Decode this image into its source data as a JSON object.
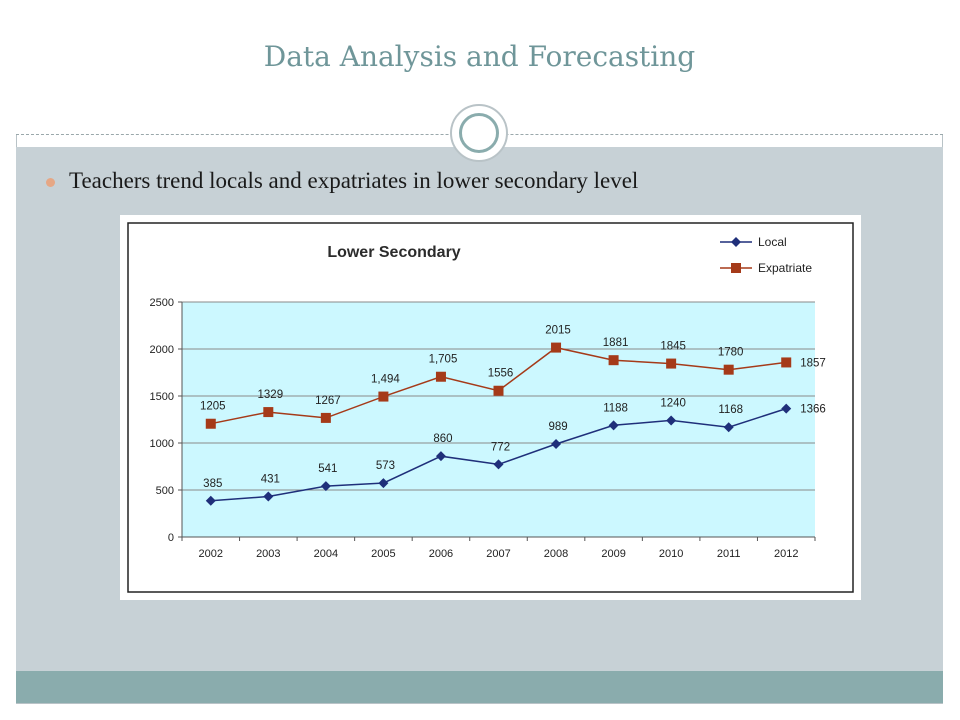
{
  "slide": {
    "title": "Data Analysis and Forecasting",
    "bullet": "Teachers trend locals and expatriates in lower secondary level"
  },
  "colors": {
    "title": "#6f9699",
    "content_bg": "#c7d1d6",
    "footer_band": "#8aacad",
    "bullet": "#e6a785",
    "plot_bg": "#ccf8ff",
    "local": "#1f2f7a",
    "expatriate": "#a53a19"
  },
  "chart_data": {
    "type": "line",
    "title": "Lower Secondary",
    "x": [
      "2002",
      "2003",
      "2004",
      "2005",
      "2006",
      "2007",
      "2008",
      "2009",
      "2010",
      "2011",
      "2012"
    ],
    "y_ticks": [
      "0",
      "500",
      "1000",
      "1500",
      "2000",
      "2500"
    ],
    "ylim": [
      0,
      2500
    ],
    "grid": true,
    "legend_position": "top-right",
    "series": [
      {
        "name": "Local",
        "values": [
          385,
          431,
          541,
          573,
          860,
          772,
          989,
          1188,
          1240,
          1168,
          1366
        ],
        "labels": [
          "385",
          "431",
          "541",
          "573",
          "860",
          "772",
          "989",
          "1188",
          "1240",
          "1168",
          "1366"
        ],
        "marker": "diamond"
      },
      {
        "name": "Expatriate",
        "values": [
          1205,
          1329,
          1267,
          1494,
          1705,
          1556,
          2015,
          1881,
          1845,
          1780,
          1857
        ],
        "labels": [
          "1205",
          "1329",
          "1267",
          "1,494",
          "1,705",
          "1556",
          "2015",
          "1881",
          "1845",
          "1780",
          "1857"
        ],
        "marker": "square"
      }
    ]
  }
}
